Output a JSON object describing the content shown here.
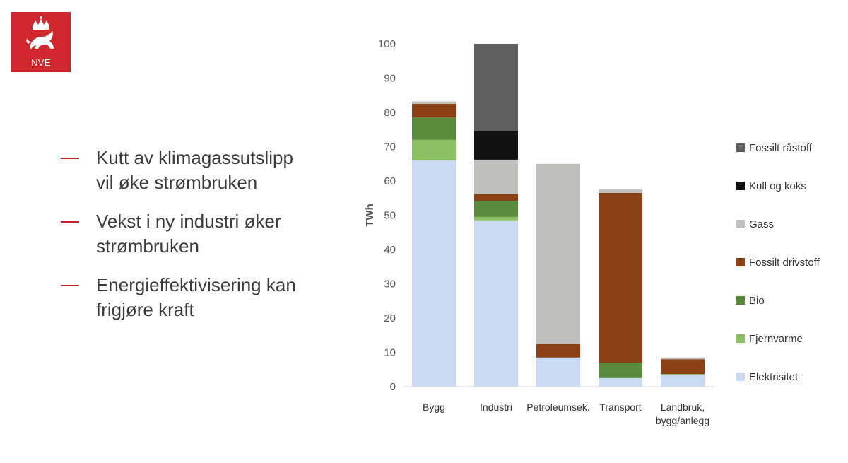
{
  "logo": {
    "text": "NVE"
  },
  "bullets": [
    {
      "text": "Kutt av klimagassutslipp\nvil øke strømbruken"
    },
    {
      "text": "Vekst i ny industri øker\nstrømbruken"
    },
    {
      "text": "Energieffektivisering kan\nfrigjøre kraft"
    }
  ],
  "colors": {
    "brand_red": "#d0262d",
    "dash_red": "#c0202d"
  },
  "chart_data": {
    "type": "bar",
    "stacked": true,
    "title": "",
    "xlabel": "",
    "ylabel": "TWh",
    "ylim": [
      0,
      100
    ],
    "yticks": [
      0,
      10,
      20,
      30,
      40,
      50,
      60,
      70,
      80,
      90,
      100
    ],
    "grid": false,
    "legend_position": "right",
    "categories": [
      "Bygg",
      "Industri",
      "Petroleumsek.",
      "Transport",
      "Landbruk,\nbygg/anlegg"
    ],
    "series": [
      {
        "name": "Elektrisitet",
        "color": "#c9daf2",
        "values": [
          66,
          48.5,
          8.5,
          2.5,
          3.5
        ]
      },
      {
        "name": "Fjernvarme",
        "color": "#8cc063",
        "values": [
          6,
          1,
          0,
          0,
          0.2
        ]
      },
      {
        "name": "Bio",
        "color": "#5a8a3c",
        "values": [
          6.5,
          4.7,
          0,
          4.5,
          0
        ]
      },
      {
        "name": "Fossilt drivstoff",
        "color": "#8b3f14",
        "values": [
          4,
          2,
          4,
          49.5,
          4.3
        ]
      },
      {
        "name": "Gass",
        "color": "#bfbfbd",
        "values": [
          0.7,
          10,
          52.5,
          1,
          0.5
        ]
      },
      {
        "name": "Kull og koks",
        "color": "#111111",
        "values": [
          0,
          8.3,
          0,
          0,
          0
        ]
      },
      {
        "name": "Fossilt råstoff",
        "color": "#5f5f5f",
        "values": [
          0,
          25.5,
          0,
          0,
          0
        ]
      }
    ]
  }
}
